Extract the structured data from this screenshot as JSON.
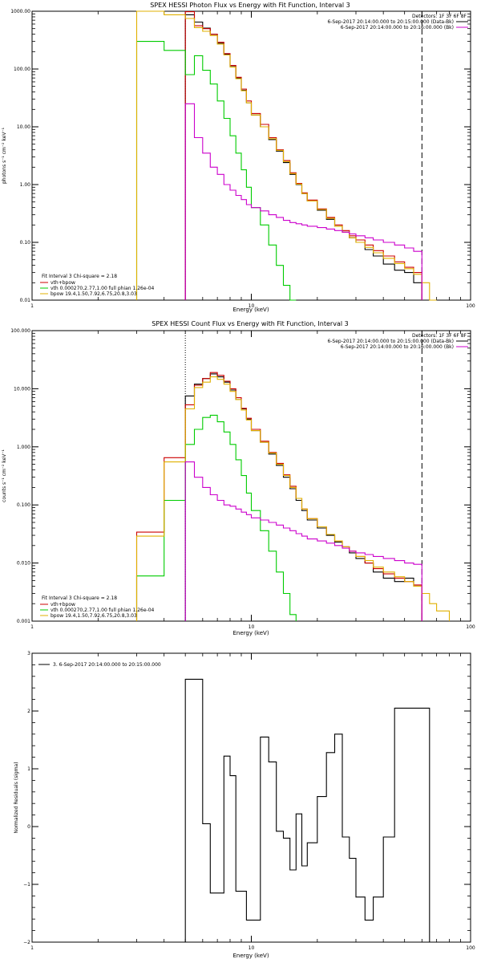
{
  "colors": {
    "data": "#000000",
    "total_fit": "#cc0000",
    "vth": "#00cc00",
    "bpow": "#e0b000",
    "background": "#cc00cc",
    "axis": "#000000"
  },
  "chart_data": [
    {
      "type": "line",
      "title": "SPEX HESSI Photon Flux vs Energy with Fit Function, Interval 3",
      "xlabel": "Energy (keV)",
      "ylabel": "photons s⁻¹ cm⁻² keV⁻¹",
      "xscale": "log",
      "yscale": "log",
      "xlim": [
        1,
        100
      ],
      "ylim": [
        0.01,
        1000
      ],
      "x_ticks": [
        {
          "v": 1,
          "label": "1"
        },
        {
          "v": 10,
          "label": "10"
        },
        {
          "v": 100,
          "label": "100"
        }
      ],
      "y_ticks": [
        {
          "v": 0.01,
          "label": "0.01"
        },
        {
          "v": 0.1,
          "label": "0.10"
        },
        {
          "v": 1,
          "label": "1.00"
        },
        {
          "v": 10,
          "label": "10.00"
        },
        {
          "v": 100,
          "label": "100.00"
        },
        {
          "v": 1000,
          "label": "1000.00"
        }
      ],
      "vlines": [
        {
          "x": 5,
          "style": "dotted"
        },
        {
          "x": 60,
          "style": "dashed"
        }
      ],
      "legend_top": {
        "placement": "top-right",
        "detectors": "Detectors: 1F 3F 6F 8F",
        "entries": [
          {
            "label": "6-Sep-2017 20:14:00.000 to 20:15:00.000 (Data-Bk)",
            "color_key": "data"
          },
          {
            "label": "6-Sep-2017 20:14:00.000 to 20:16:00.000 (Bk)",
            "color_key": "background"
          }
        ]
      },
      "legend_bottom": {
        "placement": "bottom-left",
        "header": "Fit Interval 3   Chi-square = 2.18",
        "entries": [
          {
            "label": "vth+bpow",
            "color_key": "total_fit"
          },
          {
            "label": "vth 0.000270,2.77,1.00  full phian 1.26e-04",
            "color_key": "vth"
          },
          {
            "label": "bpow 19.4,1.50,7.92,6.75,20.8,3.03",
            "color_key": "bpow"
          }
        ]
      },
      "edges": [
        3,
        4,
        5,
        5.5,
        6,
        6.5,
        7,
        7.5,
        8,
        8.5,
        9,
        9.5,
        10,
        11,
        12,
        13,
        14,
        15,
        16,
        17,
        18,
        20,
        22,
        24,
        26,
        28,
        30,
        33,
        36,
        40,
        45,
        50,
        55,
        60,
        65,
        70
      ],
      "series": [
        {
          "key": "data",
          "color_key": "data",
          "values": [
            null,
            null,
            870,
            650,
            510,
            400,
            280,
            180,
            110,
            70,
            43,
            26,
            16,
            10,
            6.0,
            3.8,
            2.4,
            1.5,
            1.0,
            0.7,
            0.52,
            0.36,
            0.25,
            0.19,
            0.15,
            0.12,
            0.1,
            0.075,
            0.058,
            0.042,
            0.033,
            0.03,
            0.02,
            null,
            null
          ]
        },
        {
          "key": "total_fit",
          "color_key": "total_fit",
          "values": [
            null,
            null,
            980,
            560,
            500,
            400,
            290,
            185,
            115,
            72,
            45,
            28,
            17,
            11,
            6.5,
            4.0,
            2.6,
            1.6,
            1.05,
            0.72,
            0.54,
            0.38,
            0.27,
            0.2,
            0.16,
            0.13,
            0.11,
            0.09,
            0.072,
            0.058,
            0.046,
            0.037,
            0.03,
            null,
            null
          ]
        },
        {
          "key": "vth",
          "color_key": "vth",
          "values": [
            300,
            210,
            80,
            170,
            95,
            55,
            28,
            14,
            7.0,
            3.5,
            1.8,
            0.9,
            0.4,
            0.2,
            0.09,
            0.04,
            0.018,
            0.01,
            null,
            null,
            null,
            null,
            null,
            null,
            null,
            null,
            null,
            null,
            null,
            null,
            null,
            null,
            null,
            null,
            null
          ]
        },
        {
          "key": "bpow",
          "color_key": "bpow",
          "values": [
            1000,
            870,
            750,
            520,
            450,
            380,
            270,
            175,
            108,
            68,
            42,
            26,
            16,
            10,
            6.2,
            3.9,
            2.5,
            1.55,
            1.02,
            0.7,
            0.52,
            0.37,
            0.26,
            0.19,
            0.15,
            0.12,
            0.1,
            0.082,
            0.066,
            0.053,
            0.043,
            0.035,
            0.028,
            0.02,
            0.01
          ]
        },
        {
          "key": "background",
          "color_key": "background",
          "values": [
            null,
            null,
            25,
            6.5,
            3.5,
            2.0,
            1.5,
            1.0,
            0.8,
            0.65,
            0.55,
            0.45,
            0.4,
            0.35,
            0.3,
            0.27,
            0.24,
            0.22,
            0.21,
            0.2,
            0.19,
            0.18,
            0.17,
            0.16,
            0.15,
            0.14,
            0.13,
            0.12,
            0.11,
            0.1,
            0.09,
            0.08,
            0.07,
            null,
            null
          ]
        }
      ]
    },
    {
      "type": "line",
      "title": "SPEX HESSI Count Flux vs Energy with Fit Function, Interval 3",
      "xlabel": "Energy (keV)",
      "ylabel": "counts s⁻¹ cm⁻² keV⁻¹",
      "xscale": "log",
      "yscale": "log",
      "xlim": [
        1,
        100
      ],
      "ylim": [
        0.001,
        100
      ],
      "x_ticks": [
        {
          "v": 1,
          "label": "1"
        },
        {
          "v": 10,
          "label": "10"
        },
        {
          "v": 100,
          "label": "100"
        }
      ],
      "y_ticks": [
        {
          "v": 0.001,
          "label": "0.001"
        },
        {
          "v": 0.01,
          "label": "0.010"
        },
        {
          "v": 0.1,
          "label": "0.100"
        },
        {
          "v": 1,
          "label": "1.000"
        },
        {
          "v": 10,
          "label": "10.000"
        },
        {
          "v": 100,
          "label": "100.000"
        }
      ],
      "vlines": [
        {
          "x": 5,
          "style": "dotted"
        },
        {
          "x": 60,
          "style": "dashed"
        }
      ],
      "legend_top": {
        "placement": "top-right",
        "detectors": "Detectors: 1F 3F 6F 8F",
        "entries": [
          {
            "label": "6-Sep-2017 20:14:00.000 to 20:15:00.000 (Data-Bk)",
            "color_key": "data"
          },
          {
            "label": "6-Sep-2017 20:14:00.000 to 20:16:00.000 (Bk)",
            "color_key": "background"
          }
        ]
      },
      "legend_bottom": {
        "placement": "bottom-left",
        "header": "Fit Interval 3   Chi-square = 2.18",
        "entries": [
          {
            "label": "vth+bpow",
            "color_key": "total_fit"
          },
          {
            "label": "vth 0.000270,2.77,1.00  full phian 1.26e-04",
            "color_key": "vth"
          },
          {
            "label": "bpow 19.4,1.50,7.92,6.75,20.8,3.03",
            "color_key": "bpow"
          }
        ]
      },
      "edges": [
        3,
        4,
        5,
        5.5,
        6,
        6.5,
        7,
        7.5,
        8,
        8.5,
        9,
        9.5,
        10,
        11,
        12,
        13,
        14,
        15,
        16,
        17,
        18,
        20,
        22,
        24,
        26,
        28,
        30,
        33,
        36,
        40,
        45,
        50,
        55,
        60,
        65,
        70,
        80
      ],
      "series": [
        {
          "key": "data",
          "color_key": "data",
          "values": [
            null,
            null,
            7.5,
            12,
            15,
            18,
            16,
            13,
            9.5,
            6.5,
            4.5,
            3.0,
            1.9,
            1.2,
            0.75,
            0.48,
            0.3,
            0.19,
            0.12,
            0.08,
            0.055,
            0.04,
            0.03,
            0.023,
            0.019,
            0.015,
            0.012,
            0.01,
            0.007,
            0.0055,
            0.0048,
            0.0055,
            0.004,
            null,
            null,
            null
          ]
        },
        {
          "key": "total_fit",
          "color_key": "total_fit",
          "values": [
            0.034,
            0.65,
            5.3,
            11.5,
            15,
            19,
            17,
            13.5,
            10,
            7.0,
            4.6,
            3.1,
            2.0,
            1.25,
            0.8,
            0.52,
            0.33,
            0.21,
            0.13,
            0.085,
            0.058,
            0.042,
            0.031,
            0.024,
            0.019,
            0.016,
            0.013,
            0.01,
            0.008,
            0.0065,
            0.0055,
            0.0048,
            0.0042,
            null,
            null,
            null
          ]
        },
        {
          "key": "vth",
          "color_key": "vth",
          "values": [
            0.006,
            0.12,
            1.1,
            2.0,
            3.2,
            3.5,
            2.7,
            1.8,
            1.1,
            0.6,
            0.32,
            0.16,
            0.08,
            0.036,
            0.016,
            0.007,
            0.003,
            0.0013,
            null,
            null,
            null,
            null,
            null,
            null,
            null,
            null,
            null,
            null,
            null,
            null,
            null,
            null,
            null,
            null,
            null,
            null
          ]
        },
        {
          "key": "bpow",
          "color_key": "bpow",
          "values": [
            0.029,
            0.55,
            4.5,
            10.5,
            13,
            16,
            14.5,
            12,
            9.0,
            6.5,
            4.3,
            2.9,
            1.9,
            1.2,
            0.78,
            0.5,
            0.32,
            0.2,
            0.13,
            0.085,
            0.058,
            0.042,
            0.031,
            0.024,
            0.019,
            0.016,
            0.013,
            0.011,
            0.0085,
            0.007,
            0.0058,
            0.0048,
            0.004,
            0.003,
            0.002,
            0.0015
          ]
        },
        {
          "key": "background",
          "color_key": "background",
          "values": [
            null,
            null,
            0.55,
            0.3,
            0.2,
            0.15,
            0.12,
            0.1,
            0.095,
            0.085,
            0.075,
            0.068,
            0.06,
            0.055,
            0.05,
            0.045,
            0.04,
            0.036,
            0.032,
            0.029,
            0.026,
            0.024,
            0.022,
            0.02,
            0.018,
            0.016,
            0.015,
            0.014,
            0.013,
            0.012,
            0.011,
            0.01,
            0.0095,
            null,
            null,
            null
          ]
        }
      ]
    },
    {
      "type": "line",
      "title": "",
      "xlabel": "Energy (keV)",
      "ylabel": "Normalized Residuals (sigma)",
      "xscale": "log",
      "yscale": "linear",
      "xlim": [
        1,
        100
      ],
      "ylim": [
        -2,
        3
      ],
      "x_ticks": [
        {
          "v": 1,
          "label": "1"
        },
        {
          "v": 10,
          "label": "10"
        },
        {
          "v": 100,
          "label": "100"
        }
      ],
      "y_ticks": [
        {
          "v": -2,
          "label": "−2"
        },
        {
          "v": -1,
          "label": "−1"
        },
        {
          "v": 0,
          "label": "0"
        },
        {
          "v": 1,
          "label": "1"
        },
        {
          "v": 2,
          "label": "2"
        },
        {
          "v": 3,
          "label": "3"
        }
      ],
      "legend_top": {
        "placement": "top-left",
        "entries": [
          {
            "label": "3.  6-Sep-2017 20:14:00.000 to 20:15:00.000",
            "color_key": "data"
          }
        ]
      },
      "edges": [
        5,
        5.5,
        6,
        6.5,
        7,
        7.5,
        8,
        8.5,
        9,
        9.5,
        10,
        11,
        12,
        13,
        14,
        15,
        16,
        17,
        18,
        20,
        22,
        24,
        26,
        28,
        30,
        33,
        36,
        40,
        45,
        50,
        55,
        60,
        65
      ],
      "series": [
        {
          "key": "residuals",
          "color_key": "data",
          "values": [
            2.55,
            2.55,
            0.05,
            -1.15,
            -1.15,
            1.22,
            0.88,
            -1.12,
            -1.12,
            -1.62,
            -1.62,
            1.55,
            1.12,
            -0.08,
            -0.2,
            -0.75,
            0.22,
            -0.68,
            -0.28,
            0.52,
            1.28,
            1.6,
            -0.18,
            -0.55,
            -1.22,
            -1.62,
            -1.22,
            -0.18,
            2.05,
            2.05,
            2.05,
            2.05
          ]
        }
      ]
    }
  ]
}
